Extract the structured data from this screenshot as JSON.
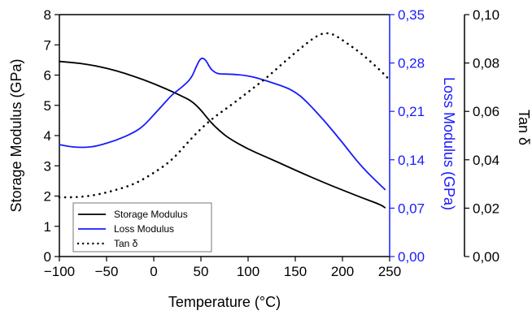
{
  "chart_data": {
    "type": "line",
    "title": "",
    "xlabel": "Temperature (°C)",
    "xlim": [
      -100,
      250
    ],
    "x_ticks": [
      "-100",
      "-50",
      "0",
      "50",
      "100",
      "150",
      "200",
      "250"
    ],
    "axes": {
      "left": {
        "label": "Storage Modulus (GPa)",
        "lim": [
          0,
          8
        ],
        "ticks": [
          "0",
          "1",
          "2",
          "3",
          "4",
          "5",
          "6",
          "7",
          "8"
        ],
        "color": "#000000"
      },
      "right_inner": {
        "label": "Loss Modulus (GPa)",
        "lim": [
          0,
          0.35
        ],
        "ticks": [
          "0,00",
          "0,07",
          "0,14",
          "0,21",
          "0,28",
          "0,35"
        ],
        "color": "#1a1aff"
      },
      "right_outer": {
        "label": "Tan δ",
        "lim": [
          0,
          0.1
        ],
        "ticks": [
          "0,00",
          "0,02",
          "0,04",
          "0,06",
          "0,08",
          "0,10"
        ],
        "color": "#000000"
      }
    },
    "legend": {
      "position": "bottom-left",
      "entries": [
        "Storage Modulus",
        "Loss Modulus",
        "Tan δ"
      ]
    },
    "series": [
      {
        "name": "Storage Modulus",
        "axis": "left",
        "color": "#000000",
        "style": "solid",
        "x": [
          -100,
          -80,
          -60,
          -40,
          -20,
          0,
          20,
          30,
          40,
          50,
          60,
          70,
          80,
          100,
          120,
          140,
          160,
          180,
          200,
          220,
          240,
          245
        ],
        "y": [
          6.45,
          6.4,
          6.3,
          6.15,
          5.95,
          5.72,
          5.45,
          5.3,
          5.15,
          4.85,
          4.45,
          4.15,
          3.9,
          3.55,
          3.28,
          3.0,
          2.72,
          2.45,
          2.2,
          1.95,
          1.72,
          1.62
        ]
      },
      {
        "name": "Loss Modulus",
        "axis": "right_inner",
        "color": "#1a1aff",
        "style": "solid",
        "x": [
          -100,
          -90,
          -80,
          -70,
          -60,
          -40,
          -20,
          -10,
          0,
          10,
          20,
          30,
          40,
          45,
          50,
          55,
          60,
          65,
          70,
          80,
          100,
          120,
          140,
          150,
          160,
          180,
          200,
          220,
          245
        ],
        "y": [
          0.162,
          0.159,
          0.158,
          0.158,
          0.16,
          0.168,
          0.18,
          0.19,
          0.205,
          0.22,
          0.235,
          0.245,
          0.258,
          0.275,
          0.288,
          0.285,
          0.272,
          0.266,
          0.264,
          0.264,
          0.262,
          0.254,
          0.245,
          0.238,
          0.227,
          0.198,
          0.165,
          0.13,
          0.097
        ]
      },
      {
        "name": "Tan δ",
        "axis": "right_outer",
        "color": "#000000",
        "style": "dotted",
        "x": [
          -100,
          -80,
          -60,
          -40,
          -20,
          0,
          20,
          40,
          60,
          80,
          100,
          120,
          140,
          160,
          170,
          180,
          190,
          200,
          220,
          240,
          250
        ],
        "y": [
          0.0245,
          0.0245,
          0.0255,
          0.0275,
          0.03,
          0.0345,
          0.04,
          0.049,
          0.0565,
          0.062,
          0.068,
          0.074,
          0.081,
          0.0875,
          0.0905,
          0.0925,
          0.092,
          0.0895,
          0.084,
          0.077,
          0.073
        ]
      }
    ]
  }
}
